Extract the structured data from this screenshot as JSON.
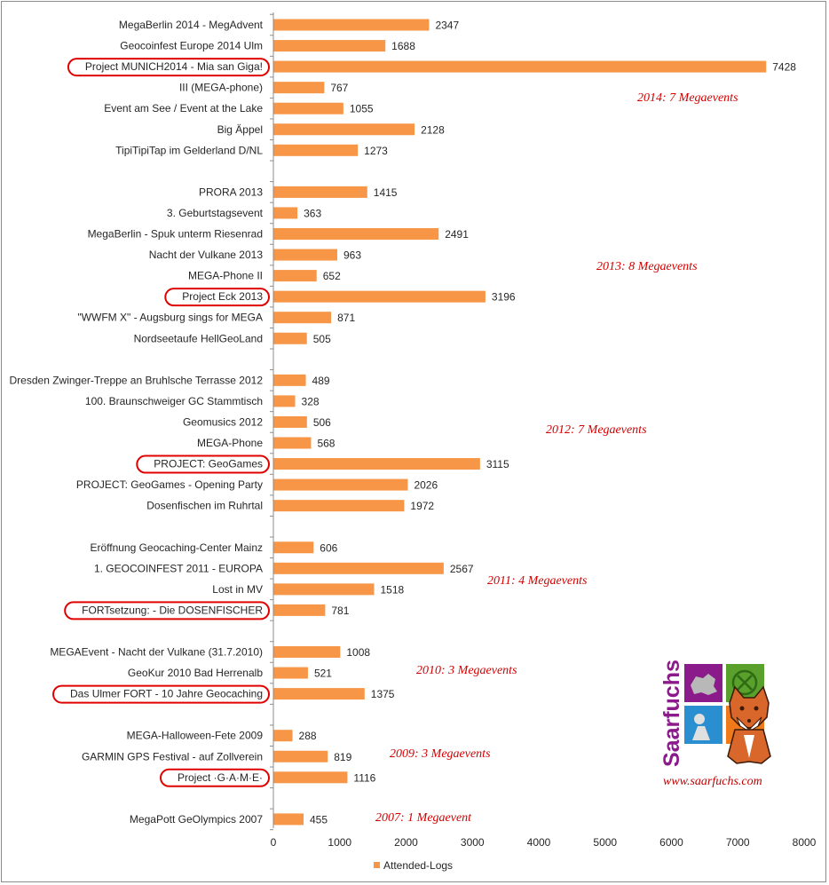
{
  "chart_data": {
    "type": "bar",
    "orientation": "horizontal",
    "categories": [
      "MegaBerlin 2014 - MegAdvent",
      "Geocoinfest Europe 2014 Ulm",
      "Project MUNICH2014 - Mia san Giga!",
      "III (MEGA-phone)",
      "Event am See / Event at the Lake",
      "Big Äppel",
      "TipiTipiTap im Gelderland D/NL",
      "PRORA 2013",
      "3. Geburtstagsevent",
      "MegaBerlin - Spuk unterm Riesenrad",
      "Nacht der Vulkane 2013",
      "MEGA-Phone II",
      "Project Eck 2013",
      "\"WWFM X\" - Augsburg sings for MEGA",
      "Nordseetaufe HellGeoLand",
      "Dresden Zwinger-Treppe an Bruhlsche Terrasse 2012",
      "100. Braunschweiger GC Stammtisch",
      "Geomusics 2012",
      "MEGA-Phone",
      "PROJECT: GeoGames",
      "PROJECT: GeoGames - Opening Party",
      "Dosenfischen im Ruhrtal",
      "Eröffnung Geocaching-Center Mainz",
      "1. GEOCOINFEST 2011 - EUROPA",
      "Lost in MV",
      "FORTsetzung: - Die DOSENFISCHER",
      "MEGAEvent - Nacht der Vulkane (31.7.2010)",
      "GeoKur 2010 Bad Herrenalb",
      "Das Ulmer FORT - 10 Jahre Geocaching",
      "MEGA-Halloween-Fete 2009",
      "GARMIN GPS Festival - auf Zollverein",
      "Project ·G·A·M·E·",
      "MegaPott GeOlympics 2007"
    ],
    "series": [
      {
        "name": "Attended-Logs",
        "color": "#f79646",
        "values": [
          2347,
          1688,
          7428,
          767,
          1055,
          2128,
          1273,
          1415,
          363,
          2491,
          963,
          652,
          3196,
          871,
          505,
          489,
          328,
          506,
          568,
          3115,
          2026,
          1972,
          606,
          2567,
          1518,
          781,
          1008,
          521,
          1375,
          288,
          819,
          1116,
          455
        ]
      }
    ],
    "groups": [
      {
        "label": "2014: 7 Megaevents",
        "count": 7
      },
      {
        "label": "2013: 8 Megaevents",
        "count": 8
      },
      {
        "label": "2012: 7 Megaevents",
        "count": 7
      },
      {
        "label": "2011: 4 Megaevents",
        "count": 4
      },
      {
        "label": "2010: 3 Megaevents",
        "count": 3
      },
      {
        "label": "2009: 3 Megaevents",
        "count": 3
      },
      {
        "label": "2007: 1 Megaevent",
        "count": 1
      }
    ],
    "highlighted": [
      "Project MUNICH2014 - Mia san Giga!",
      "Project Eck 2013",
      "PROJECT: GeoGames",
      "FORTsetzung: - Die DOSENFISCHER",
      "Das Ulmer FORT - 10 Jahre Geocaching",
      "Project ·G·A·M·E·"
    ],
    "highlight_color": "#e00000",
    "xlim": [
      0,
      8000
    ],
    "xticks": [
      0,
      1000,
      2000,
      3000,
      4000,
      5000,
      6000,
      7000,
      8000
    ],
    "grid": false,
    "legend": "bottom",
    "annotation_color": "#d40000"
  },
  "logo": {
    "name": "Saarfuchs",
    "url": "www.saarfuchs.com",
    "colors": [
      "#8b1a8b",
      "#5aa02c",
      "#e8e000",
      "#2a8fd0",
      "#f07a1a"
    ]
  }
}
